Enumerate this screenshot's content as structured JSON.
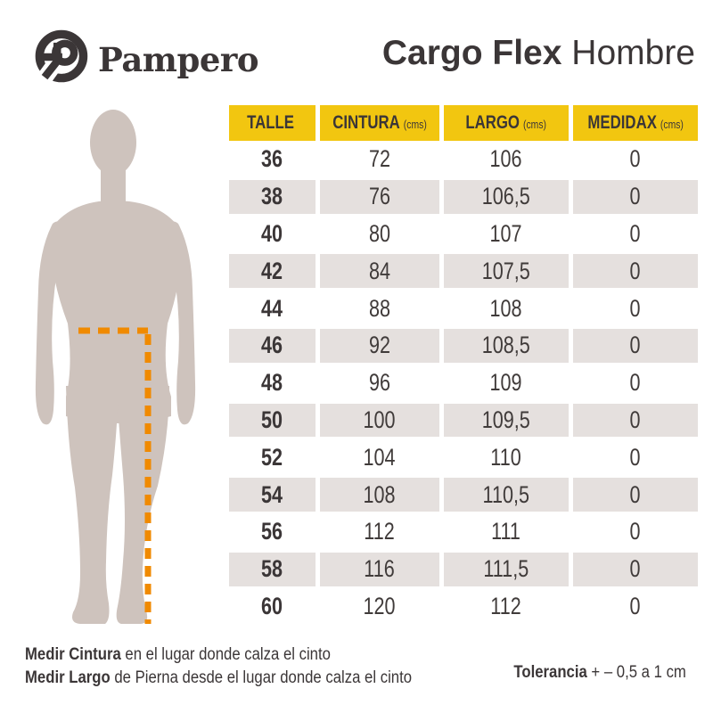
{
  "brand": {
    "name": "Pampero",
    "logo_icon": "pampero-p-circle-logo"
  },
  "title": {
    "bold": "Cargo Flex",
    "regular": "Hombre"
  },
  "table": {
    "headers": [
      {
        "label": "TALLE",
        "unit": ""
      },
      {
        "label": "CINTURA",
        "unit": "(cms)"
      },
      {
        "label": "LARGO",
        "unit": "(cms)"
      },
      {
        "label": "MEDIDAX",
        "unit": "(cms)"
      }
    ],
    "rows": [
      [
        "36",
        "72",
        "106",
        "0"
      ],
      [
        "38",
        "76",
        "106,5",
        "0"
      ],
      [
        "40",
        "80",
        "107",
        "0"
      ],
      [
        "42",
        "84",
        "107,5",
        "0"
      ],
      [
        "44",
        "88",
        "108",
        "0"
      ],
      [
        "46",
        "92",
        "108,5",
        "0"
      ],
      [
        "48",
        "96",
        "109",
        "0"
      ],
      [
        "50",
        "100",
        "109,5",
        "0"
      ],
      [
        "52",
        "104",
        "110",
        "0"
      ],
      [
        "54",
        "108",
        "110,5",
        "0"
      ],
      [
        "56",
        "112",
        "111",
        "0"
      ],
      [
        "58",
        "116",
        "111,5",
        "0"
      ],
      [
        "60",
        "120",
        "112",
        "0"
      ]
    ]
  },
  "footnotes": [
    {
      "bold": "Medir Cintura",
      "rest": " en el lugar donde calza el cinto"
    },
    {
      "bold": "Medir Largo",
      "rest": " de Pierna desde el lugar donde calza el cinto"
    }
  ],
  "tolerance": {
    "bold": "Tolerancia",
    "rest": " + – 0,5 a 1 cm"
  },
  "figure": {
    "name": "male-body-silhouette",
    "measure_lines": [
      "waist-cintura-line",
      "leg-largo-line"
    ]
  },
  "colors": {
    "yellow": "#F2C610",
    "dark": "#3B3637",
    "row_gray": "#E5E0DE",
    "silhouette": "#CEC3BD",
    "orange": "#F08A00"
  }
}
